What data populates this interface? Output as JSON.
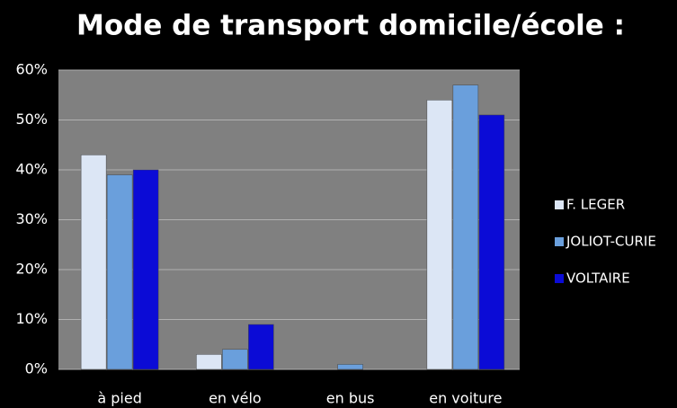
{
  "chart_data": {
    "type": "bar",
    "title": "Mode de transport domicile/école :",
    "categories": [
      "à pied",
      "en vélo",
      "en bus",
      "en voiture"
    ],
    "series": [
      {
        "name": "F. LEGER",
        "color": "#dce6f5",
        "values": [
          43,
          3,
          0,
          54
        ]
      },
      {
        "name": "JOLIOT-CURIE",
        "color": "#6a9fdc",
        "values": [
          39,
          4,
          1,
          57
        ]
      },
      {
        "name": "VOLTAIRE",
        "color": "#0b0bd6",
        "values": [
          40,
          9,
          0,
          51
        ]
      }
    ],
    "ylim": [
      0,
      60
    ],
    "yticks": [
      {
        "value": 0,
        "label": "0%"
      },
      {
        "value": 10,
        "label": "10%"
      },
      {
        "value": 20,
        "label": "20%"
      },
      {
        "value": 30,
        "label": "30%"
      },
      {
        "value": 40,
        "label": "40%"
      },
      {
        "value": 50,
        "label": "50%"
      },
      {
        "value": 60,
        "label": "60%"
      }
    ],
    "grid": true,
    "legend": "right"
  }
}
